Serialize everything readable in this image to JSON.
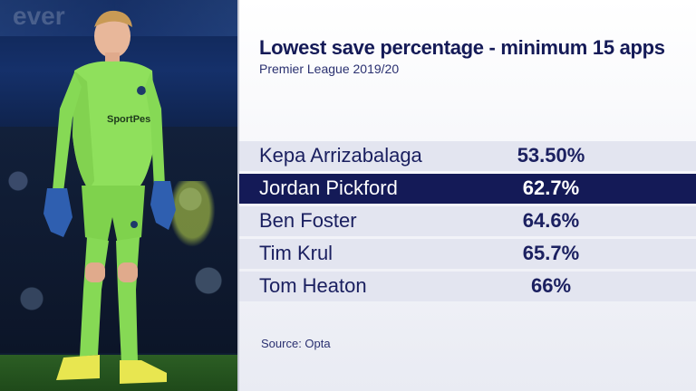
{
  "heading": {
    "title": "Lowest save percentage - minimum 15 apps",
    "subtitle": "Premier League 2019/20"
  },
  "photo": {
    "sign_text": "ever"
  },
  "table": {
    "rows": [
      {
        "name": "Kepa Arrizabalaga",
        "value": "53.50%",
        "highlight": false
      },
      {
        "name": "Jordan Pickford",
        "value": "62.7%",
        "highlight": true
      },
      {
        "name": "Ben Foster",
        "value": "64.6%",
        "highlight": false
      },
      {
        "name": "Tim Krul",
        "value": "65.7%",
        "highlight": false
      },
      {
        "name": "Tom Heaton",
        "value": "66%",
        "highlight": false
      }
    ]
  },
  "source": "Source: Opta",
  "colors": {
    "navy": "#141a57",
    "row_bg": "#e3e5f0",
    "kit_green": "#8ee05a"
  }
}
